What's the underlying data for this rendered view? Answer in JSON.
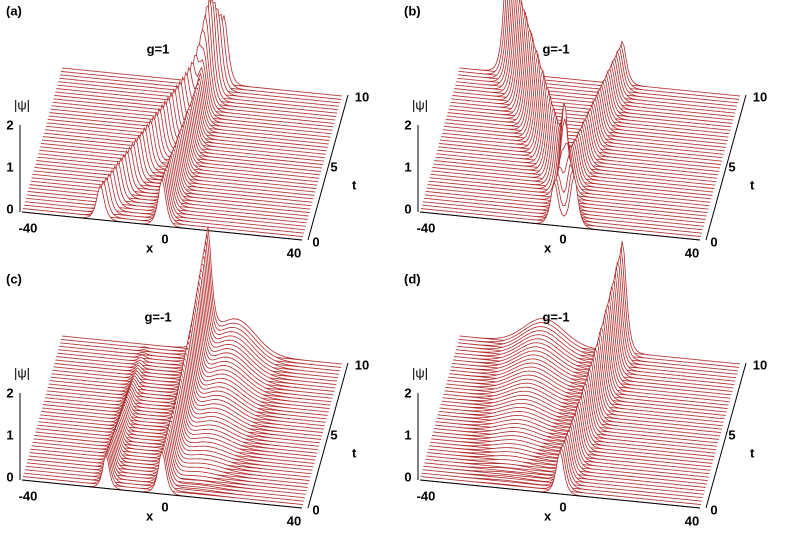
{
  "panels": [
    {
      "label": "(a)",
      "title": "g=1",
      "z_label": "|ψ|",
      "z_ticks": [
        "0",
        "1",
        "2"
      ],
      "t_label": "t",
      "t_ticks": [
        "0",
        "5",
        "10"
      ],
      "x_label": "x",
      "x_ticks": [
        "-40",
        "0",
        "40"
      ]
    },
    {
      "label": "(b)",
      "title": "g=-1",
      "z_label": "|ψ|",
      "z_ticks": [
        "0",
        "1",
        "2"
      ],
      "t_label": "t",
      "t_ticks": [
        "0",
        "5",
        "10"
      ],
      "x_label": "x",
      "x_ticks": [
        "-40",
        "0",
        "40"
      ]
    },
    {
      "label": "(c)",
      "title": "g=-1",
      "z_label": "|ψ|",
      "z_ticks": [
        "0",
        "1",
        "2"
      ],
      "t_label": "t",
      "t_ticks": [
        "0",
        "5",
        "10"
      ],
      "x_label": "x",
      "x_ticks": [
        "-40",
        "0",
        "40"
      ]
    },
    {
      "label": "(d)",
      "title": "g=-1",
      "z_label": "|ψ|",
      "z_ticks": [
        "0",
        "1",
        "2"
      ],
      "t_label": "t",
      "t_ticks": [
        "0",
        "5",
        "10"
      ],
      "x_label": "x",
      "x_ticks": [
        "-40",
        "0",
        "40"
      ]
    }
  ]
}
